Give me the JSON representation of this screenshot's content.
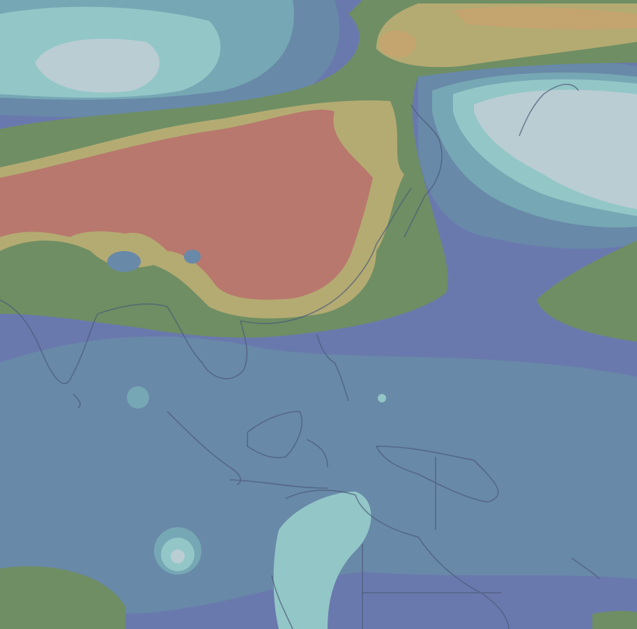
{
  "map": {
    "palette": {
      "deep_blue": "#6a79ad",
      "slate_blue": "#6889a8",
      "teal": "#76a7b4",
      "light_teal": "#93c6c7",
      "pale": "#b9cdd3",
      "green": "#6f8e63",
      "khaki": "#b4ab73",
      "sand": "#c4a46f",
      "salmon": "#b8786d",
      "coast": "#4c5a78"
    }
  }
}
